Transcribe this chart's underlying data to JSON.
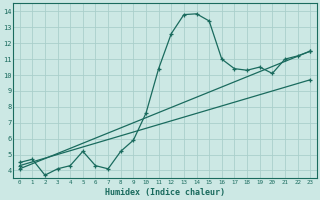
{
  "title": "",
  "xlabel": "Humidex (Indice chaleur)",
  "bg_color": "#cce8e4",
  "grid_color": "#aacfcb",
  "line_color": "#1a6b5e",
  "xlim": [
    -0.5,
    23.5
  ],
  "ylim": [
    3.5,
    14.5
  ],
  "xticks": [
    0,
    1,
    2,
    3,
    4,
    5,
    6,
    7,
    8,
    9,
    10,
    11,
    12,
    13,
    14,
    15,
    16,
    17,
    18,
    19,
    20,
    21,
    22,
    23
  ],
  "yticks": [
    4,
    5,
    6,
    7,
    8,
    9,
    10,
    11,
    12,
    13,
    14
  ],
  "curve_x": [
    0,
    1,
    2,
    3,
    4,
    5,
    6,
    7,
    8,
    9,
    10,
    11,
    12,
    13,
    14,
    15,
    16,
    17,
    18,
    19,
    20,
    21,
    22,
    23
  ],
  "curve_y": [
    4.5,
    4.7,
    3.7,
    4.1,
    4.3,
    5.2,
    4.3,
    4.1,
    5.2,
    5.9,
    7.6,
    10.4,
    12.6,
    13.8,
    13.85,
    13.4,
    11.0,
    10.4,
    10.3,
    10.5,
    10.1,
    11.0,
    11.2,
    11.5
  ],
  "line1_x": [
    0,
    23
  ],
  "line1_y": [
    4.3,
    9.7
  ],
  "line2_x": [
    0,
    23
  ],
  "line2_y": [
    4.1,
    11.5
  ],
  "marker_line1_x": [
    0,
    23
  ],
  "marker_line1_y": [
    4.3,
    9.7
  ],
  "marker_line2_x": [
    0,
    23
  ],
  "marker_line2_y": [
    4.1,
    11.5
  ]
}
